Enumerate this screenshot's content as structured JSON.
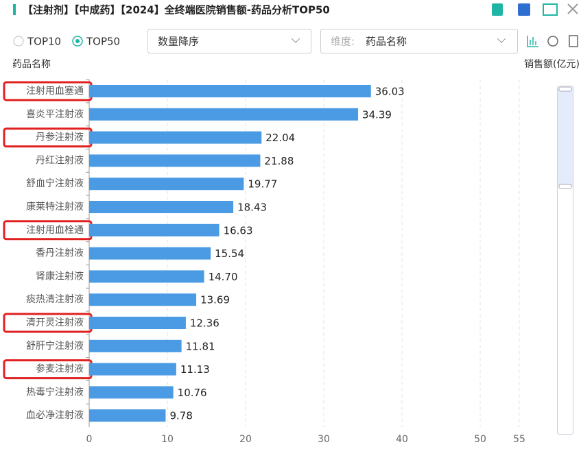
{
  "toolbar": {
    "title": "【注射剂】【中成药】【2024】全终端医院销售额-药品分析TOP50",
    "options": [
      "TOP10",
      "TOP50"
    ],
    "selected_option": 1,
    "sort": "数量降序",
    "dimension_label": "维度:",
    "dimension": "药品名称"
  },
  "chart_data": {
    "type": "bar",
    "orientation": "horizontal",
    "y_label": "药品名称",
    "x_label": "销售额(亿元)",
    "categories": [
      "注射用血塞通",
      "喜炎平注射液",
      "丹参注射液",
      "丹红注射液",
      "舒血宁注射液",
      "康莱特注射液",
      "注射用血栓通",
      "香丹注射液",
      "肾康注射液",
      "痰热清注射液",
      "清开灵注射液",
      "舒肝宁注射液",
      "参麦注射液",
      "热毒宁注射液",
      "血必净注射液"
    ],
    "values": [
      36.03,
      34.39,
      22.04,
      21.88,
      19.77,
      18.43,
      16.63,
      15.54,
      14.7,
      13.69,
      12.36,
      11.81,
      11.13,
      10.76,
      9.78
    ],
    "value_labels": [
      "36.03",
      "34.39",
      "22.04",
      "21.88",
      "19.77",
      "18.43",
      "16.63",
      "15.54",
      "14.70",
      "13.69",
      "12.36",
      "11.81",
      "11.13",
      "10.76",
      "9.78"
    ],
    "color": "#4a9be3",
    "highlighted_categories": [
      0,
      2,
      6,
      10,
      12
    ],
    "highlight_color": "#e02020",
    "xlim": [
      0,
      55
    ],
    "xticks": [
      0,
      10,
      20,
      30,
      40,
      50,
      55
    ],
    "grid": true
  }
}
